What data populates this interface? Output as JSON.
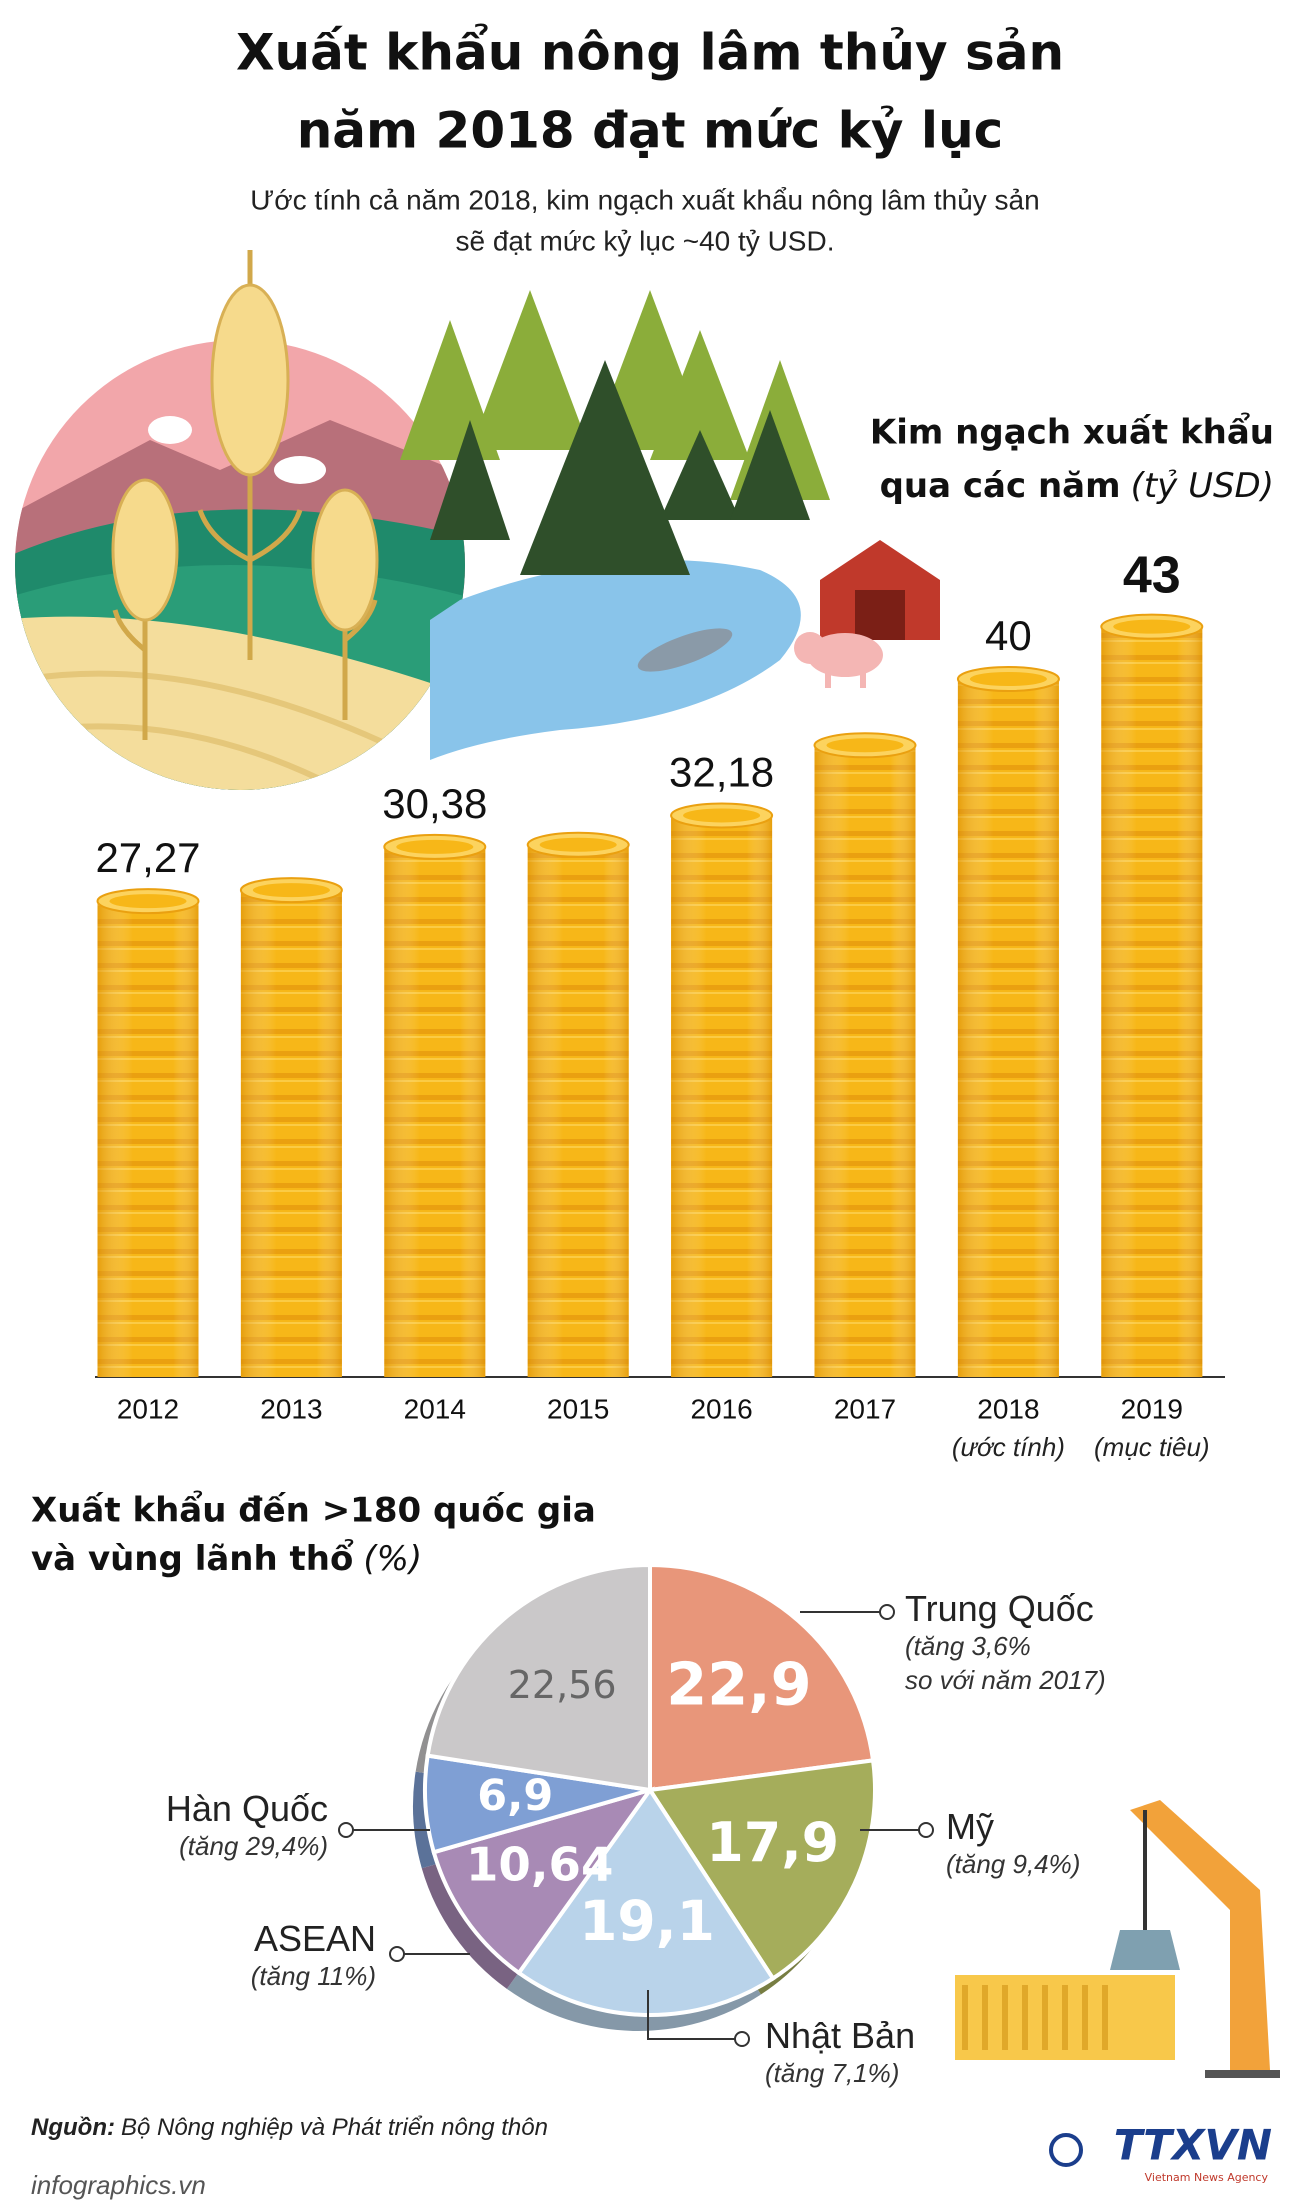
{
  "title": [
    "Xuất khẩu nông lâm thủy sản",
    "năm 2018 đạt mức kỷ lục"
  ],
  "subtitle": [
    "Ước tính cả năm 2018, kim ngạch xuất khẩu nông lâm thủy sản",
    "sẽ đạt mức kỷ lục ~40 tỷ USD."
  ],
  "chart_data": [
    {
      "type": "bar",
      "title": [
        "Kim ngạch xuất khẩu",
        "qua các năm"
      ],
      "unit": "(tỷ USD)",
      "categories": [
        "2012",
        "2013",
        "2014",
        "2015",
        "2016",
        "2017",
        "2018",
        "2019"
      ],
      "category_notes": [
        null,
        null,
        null,
        null,
        null,
        null,
        "(ước tính)",
        "(mục tiêu)"
      ],
      "values": [
        27.27,
        27.9,
        30.38,
        30.5,
        32.18,
        36.2,
        40,
        43
      ],
      "value_labels": [
        "27,27",
        null,
        "30,38",
        null,
        "32,18",
        null,
        "40",
        "43"
      ],
      "color": "#f7b718"
    },
    {
      "type": "pie",
      "title": [
        "Xuất khẩu đến >180 quốc gia",
        "và vùng lãnh thổ"
      ],
      "unit": "(%)",
      "labels": [
        "Trung Quốc",
        "Mỹ",
        "Nhật Bản",
        "ASEAN",
        "Hàn Quốc",
        null
      ],
      "notes": [
        "(tăng 3,6%\nso với năm 2017)",
        "(tăng 9,4%)",
        "(tăng 7,1%)",
        "(tăng 11%)",
        "(tăng 29,4%)",
        null
      ],
      "values": [
        22.9,
        17.9,
        19.1,
        10.64,
        6.9,
        22.56
      ],
      "value_labels": [
        "22,9",
        "17,9",
        "19,1",
        "10,64",
        "6,9",
        "22,56"
      ],
      "colors": [
        "#e8967a",
        "#a5ad5b",
        "#b9d3ea",
        "#a88ab5",
        "#7f9fd4",
        "#cac8c9"
      ]
    }
  ],
  "source": {
    "label": "Nguồn:",
    "text": "Bộ Nông nghiệp và Phát triển nông thôn"
  },
  "footer": "infographics.vn",
  "logo": {
    "text": "TTXVN",
    "tagline": "Vietnam News Agency"
  }
}
